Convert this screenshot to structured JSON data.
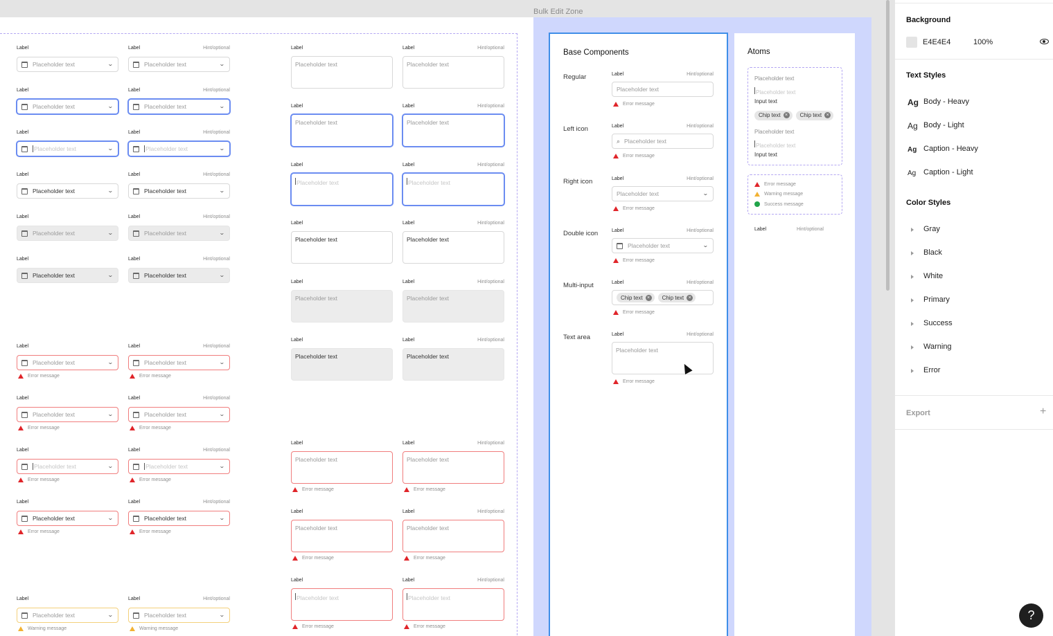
{
  "zone_title": "Bulk Edit Zone",
  "field": {
    "label": "Label",
    "hint": "Hint/optional",
    "placeholder": "Placeholder text",
    "error": "Error message",
    "warning": "Warning message",
    "success": "Success message",
    "input_text": "Input text",
    "chip": "Chip text"
  },
  "base_components": {
    "title": "Base Components",
    "rows": [
      "Regular",
      "Left icon",
      "Right icon",
      "Double icon",
      "Multi-input",
      "Text area"
    ]
  },
  "atoms": {
    "title": "Atoms"
  },
  "panel": {
    "background_title": "Background",
    "background_hex": "E4E4E4",
    "background_opacity": "100%",
    "text_styles_title": "Text Styles",
    "ag": "Ag",
    "text_styles": [
      "Body - Heavy",
      "Body - Light",
      "Caption - Heavy",
      "Caption - Light"
    ],
    "color_styles_title": "Color Styles",
    "color_styles": [
      "Gray",
      "Black",
      "White",
      "Primary",
      "Success",
      "Warning",
      "Error"
    ],
    "export_title": "Export",
    "export_add": "+",
    "help": "?"
  },
  "colors": {
    "focus_border": "#6b8cf1",
    "error_border": "#f07d7d",
    "warning_border": "#f4d07a",
    "selection": "#3f8ee8",
    "zone_bg": "#cfd7fd",
    "dashed": "#b3a6f2"
  }
}
